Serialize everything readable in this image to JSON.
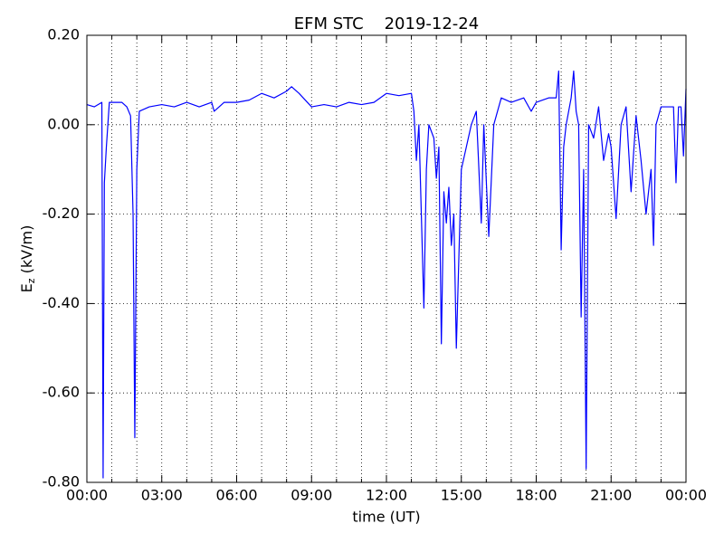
{
  "chart_data": {
    "type": "line",
    "title": "EFM STC    2019-12-24",
    "xlabel": "time (UT)",
    "ylabel": {
      "main": "E",
      "sub": "z",
      "rest": " (kV/m)"
    },
    "color": "#0000ff",
    "grid": true,
    "x": [
      0,
      0.3,
      0.6,
      0.65,
      0.7,
      0.78,
      0.9,
      1.1,
      1.4,
      1.6,
      1.75,
      1.85,
      1.92,
      2.0,
      2.1,
      2.5,
      3,
      3.5,
      4,
      4.5,
      5,
      5.1,
      5.5,
      6,
      6.5,
      7,
      7.5,
      8,
      8.2,
      8.5,
      9,
      9.5,
      10,
      10.5,
      11,
      11.5,
      12,
      12.5,
      13,
      13.1,
      13.2,
      13.3,
      13.5,
      13.6,
      13.7,
      13.9,
      14.0,
      14.1,
      14.2,
      14.3,
      14.4,
      14.5,
      14.6,
      14.7,
      14.8,
      14.9,
      15.0,
      15.2,
      15.4,
      15.6,
      15.8,
      15.9,
      16.1,
      16.3,
      16.6,
      17,
      17.5,
      17.8,
      18,
      18.5,
      18.8,
      18.9,
      19.0,
      19.1,
      19.2,
      19.4,
      19.5,
      19.6,
      19.7,
      19.8,
      19.9,
      20.0,
      20.1,
      20.3,
      20.5,
      20.7,
      20.9,
      21.0,
      21.2,
      21.4,
      21.6,
      21.8,
      22.0,
      22.2,
      22.4,
      22.6,
      22.7,
      22.8,
      23.0,
      23.5,
      23.6,
      23.7,
      23.8,
      23.9,
      24.0
    ],
    "values": [
      0.045,
      0.04,
      0.05,
      -0.79,
      -0.13,
      -0.05,
      0.05,
      0.05,
      0.05,
      0.04,
      0.02,
      -0.2,
      -0.7,
      -0.1,
      0.03,
      0.04,
      0.045,
      0.04,
      0.05,
      0.04,
      0.05,
      0.03,
      0.05,
      0.05,
      0.055,
      0.07,
      0.06,
      0.075,
      0.085,
      0.07,
      0.04,
      0.045,
      0.04,
      0.05,
      0.045,
      0.05,
      0.07,
      0.065,
      0.07,
      0.03,
      -0.08,
      0.0,
      -0.41,
      -0.1,
      0.0,
      -0.03,
      -0.12,
      -0.05,
      -0.49,
      -0.15,
      -0.22,
      -0.14,
      -0.27,
      -0.2,
      -0.5,
      -0.3,
      -0.1,
      -0.05,
      0.0,
      0.03,
      -0.22,
      0.0,
      -0.25,
      0.0,
      0.06,
      0.05,
      0.06,
      0.03,
      0.05,
      0.06,
      0.06,
      0.12,
      -0.28,
      -0.05,
      0.0,
      0.06,
      0.12,
      0.03,
      0.0,
      -0.43,
      -0.1,
      -0.77,
      0.0,
      -0.03,
      0.04,
      -0.08,
      -0.02,
      -0.05,
      -0.21,
      0.0,
      0.04,
      -0.15,
      0.02,
      -0.08,
      -0.2,
      -0.1,
      -0.27,
      0.0,
      0.04,
      0.04,
      -0.13,
      0.04,
      0.04,
      -0.07,
      0.08
    ],
    "xlim": [
      0,
      24
    ],
    "xticks": [
      {
        "value": 0,
        "label": "00:00"
      },
      {
        "value": 3,
        "label": "03:00"
      },
      {
        "value": 6,
        "label": "06:00"
      },
      {
        "value": 9,
        "label": "09:00"
      },
      {
        "value": 12,
        "label": "12:00"
      },
      {
        "value": 15,
        "label": "15:00"
      },
      {
        "value": 18,
        "label": "18:00"
      },
      {
        "value": 21,
        "label": "21:00"
      },
      {
        "value": 24,
        "label": "00:00"
      }
    ],
    "xminorticks": [
      1,
      2,
      4,
      5,
      7,
      8,
      10,
      11,
      13,
      14,
      16,
      17,
      19,
      20,
      22,
      23
    ],
    "ylim": [
      -0.8,
      0.2
    ],
    "yticks": [
      {
        "value": 0.2,
        "label": "0.20"
      },
      {
        "value": 0,
        "label": "0.00"
      },
      {
        "value": -0.2,
        "label": "-0.20"
      },
      {
        "value": -0.4,
        "label": "-0.40"
      },
      {
        "value": -0.6,
        "label": "-0.60"
      },
      {
        "value": -0.8,
        "label": "-0.80"
      }
    ]
  }
}
